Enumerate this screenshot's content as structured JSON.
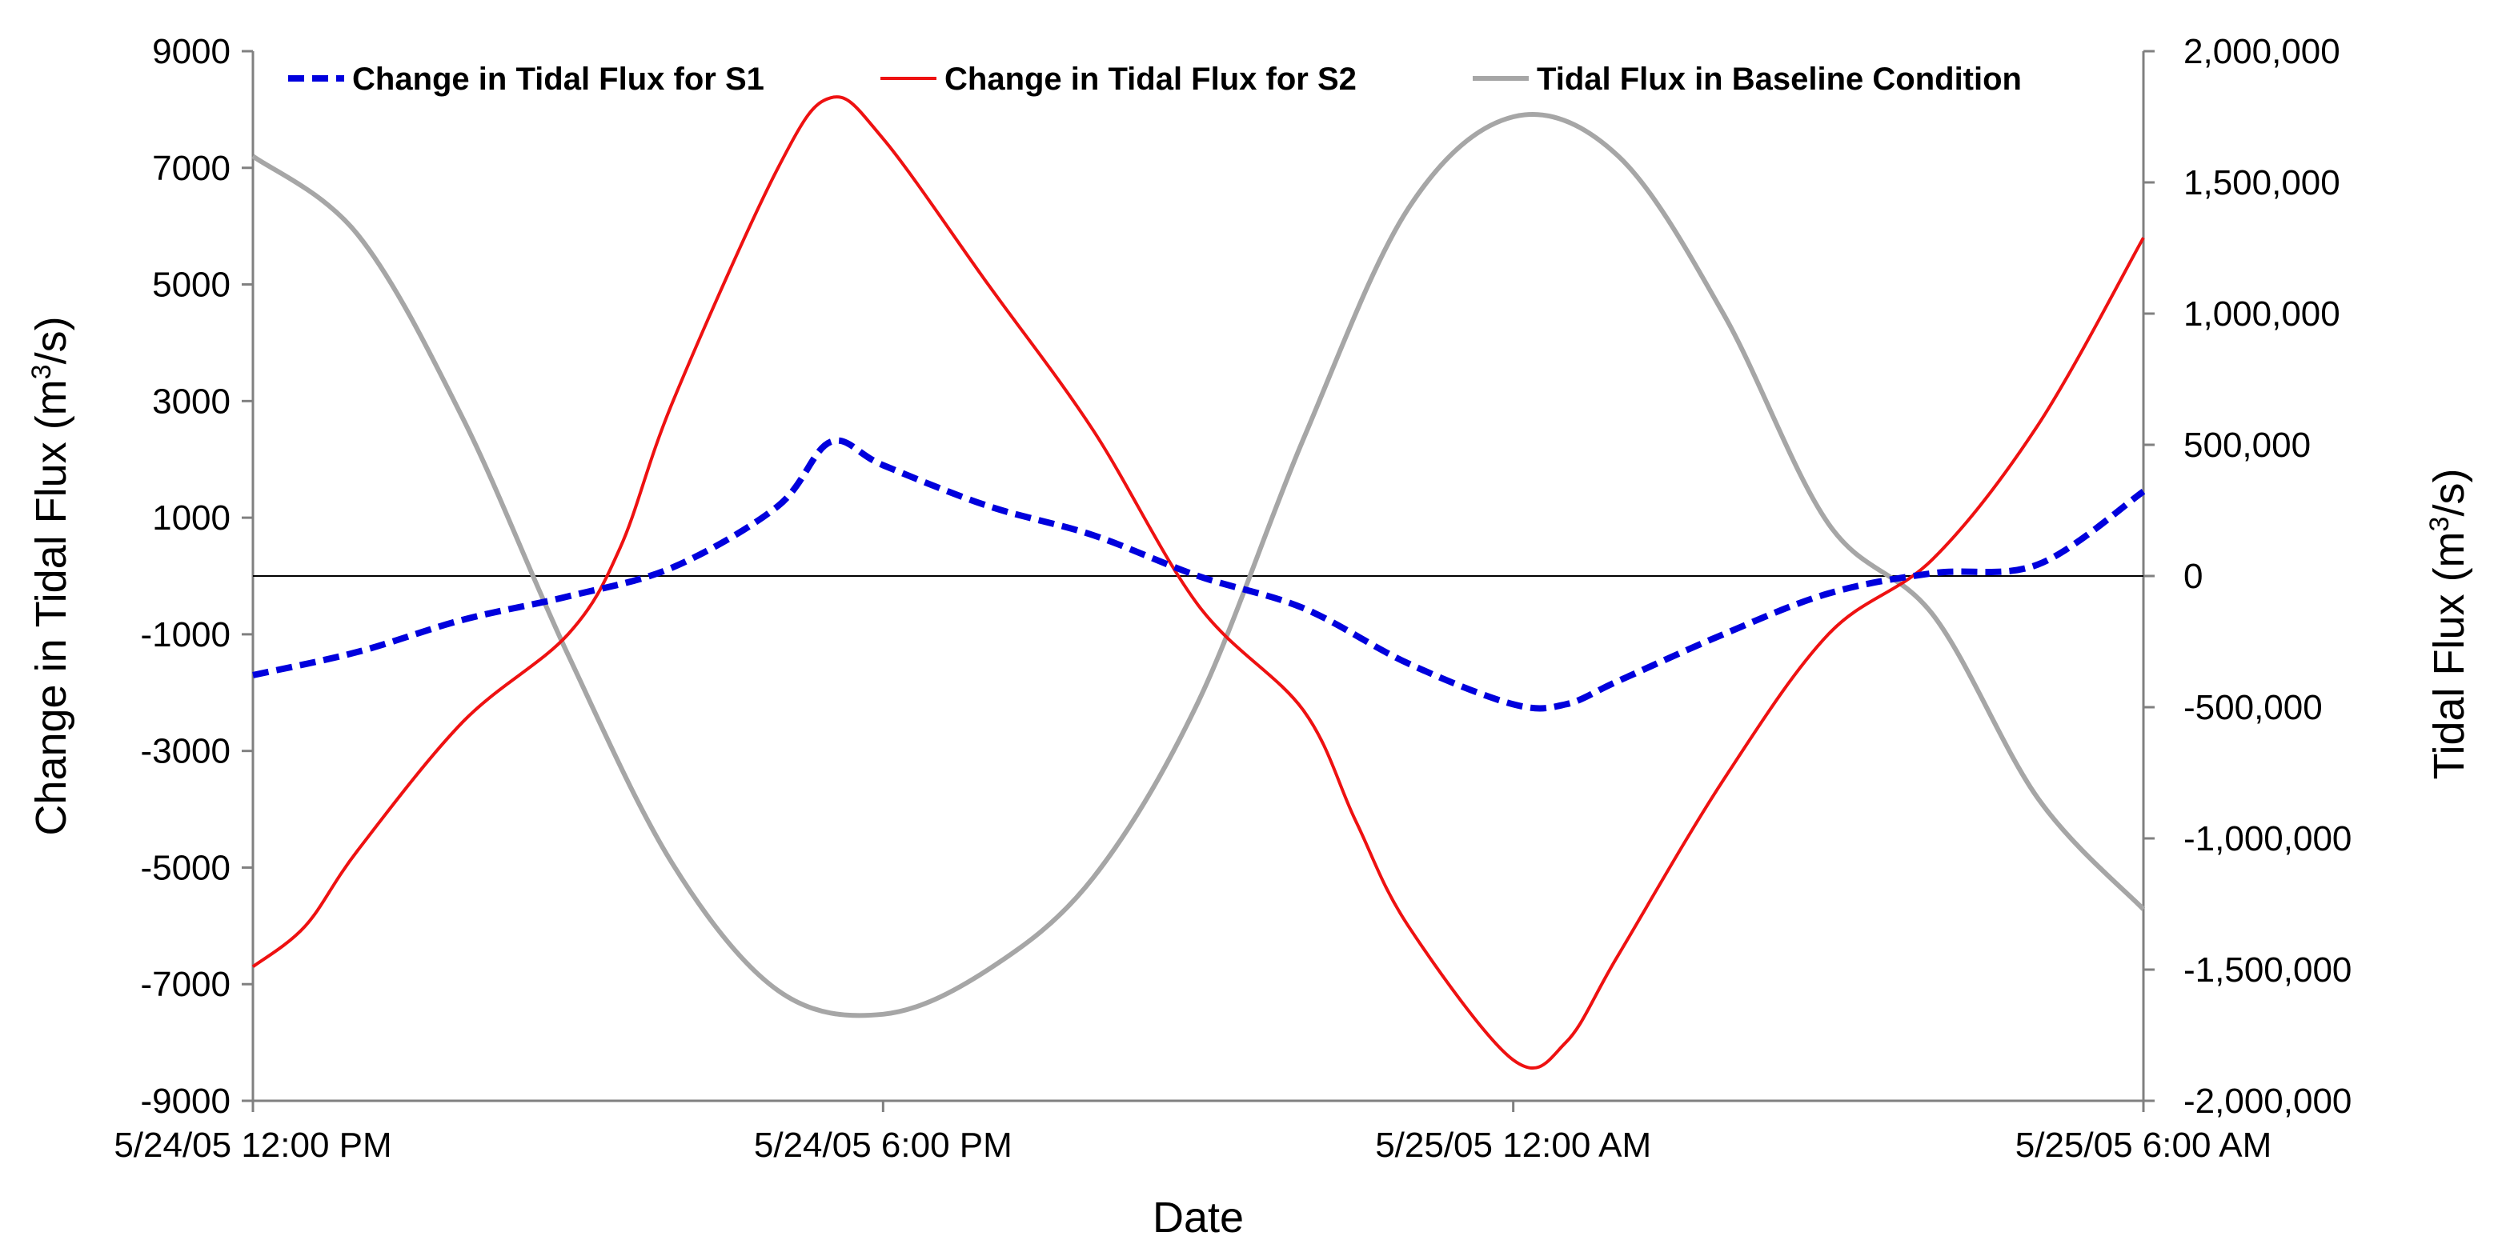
{
  "chart_data": {
    "type": "line",
    "x_axis": {
      "label": "Date",
      "start": "5/24/05 12:00 PM",
      "end": "5/25/05 6:00 AM",
      "ticks": [
        "5/24/05 12:00 PM",
        "5/24/05 6:00 PM",
        "5/25/05 12:00 AM",
        "5/25/05 6:00 AM"
      ],
      "tick_hours": [
        0,
        6,
        12,
        18
      ],
      "range_hours": [
        0,
        18
      ]
    },
    "y_left": {
      "label_parts": [
        "Change in Tidal Flux (m",
        "3",
        "/s)"
      ],
      "range": [
        -9000,
        9000
      ],
      "ticks": [
        "9000",
        "7000",
        "5000",
        "3000",
        "1000",
        "-1000",
        "-3000",
        "-5000",
        "-7000",
        "-9000"
      ],
      "tick_values": [
        9000,
        7000,
        5000,
        3000,
        1000,
        -1000,
        -3000,
        -5000,
        -7000,
        -9000
      ]
    },
    "y_right": {
      "label_parts": [
        "Tidal Flux (m",
        "3",
        "/s)"
      ],
      "range": [
        -2000000,
        2000000
      ],
      "ticks": [
        "2,000,000",
        "1,500,000",
        "1,000,000",
        "500,000",
        "0",
        "-500,000",
        "-1,000,000",
        "-1,500,000",
        "-2,000,000"
      ],
      "tick_values": [
        2000000,
        1500000,
        1000000,
        500000,
        0,
        -500000,
        -1000000,
        -1500000,
        -2000000
      ]
    },
    "zero_line": true,
    "grid": false,
    "legend_position": "top",
    "series": [
      {
        "name": "Change in Tidal Flux for S1",
        "axis": "left",
        "color": "#0000dd",
        "style": "dashed",
        "x": [
          0,
          1,
          2,
          3,
          4,
          5,
          5.5,
          6,
          7,
          8,
          9,
          10,
          11,
          12,
          12.5,
          13,
          14,
          15,
          16,
          17,
          18
        ],
        "y": [
          -1700,
          -1300,
          -750,
          -350,
          150,
          1200,
          2300,
          1900,
          1200,
          700,
          0,
          -550,
          -1500,
          -2200,
          -2200,
          -1800,
          -1000,
          -300,
          50,
          200,
          1450
        ]
      },
      {
        "name": "Change in Tidal Flux for S2",
        "axis": "left",
        "color": "#ee1111",
        "style": "solid",
        "x": [
          0,
          0.5,
          1,
          2,
          3,
          3.5,
          4,
          5,
          5.5,
          6,
          7,
          8,
          9,
          10,
          10.5,
          11,
          12,
          12.5,
          13,
          14,
          15,
          16,
          17,
          18
        ],
        "y": [
          -6700,
          -6000,
          -4700,
          -2500,
          -1000,
          500,
          3000,
          7000,
          8200,
          7500,
          5000,
          2500,
          -500,
          -2300,
          -4200,
          -6000,
          -8300,
          -8000,
          -6500,
          -3500,
          -1000,
          300,
          2600,
          5800
        ]
      },
      {
        "name": "Tidal Flux in Baseline Condition",
        "axis": "right",
        "color": "#a6a6a6",
        "style": "solid",
        "x": [
          0,
          1,
          2,
          3,
          4,
          5,
          6,
          7,
          8,
          9,
          10,
          11,
          12,
          13,
          14,
          15,
          16,
          17,
          18
        ],
        "y": [
          1600000,
          1300000,
          600000,
          -300000,
          -1100000,
          -1580000,
          -1670000,
          -1500000,
          -1150000,
          -480000,
          520000,
          1400000,
          1750000,
          1600000,
          1000000,
          200000,
          -150000,
          -850000,
          -1270000
        ]
      }
    ]
  }
}
